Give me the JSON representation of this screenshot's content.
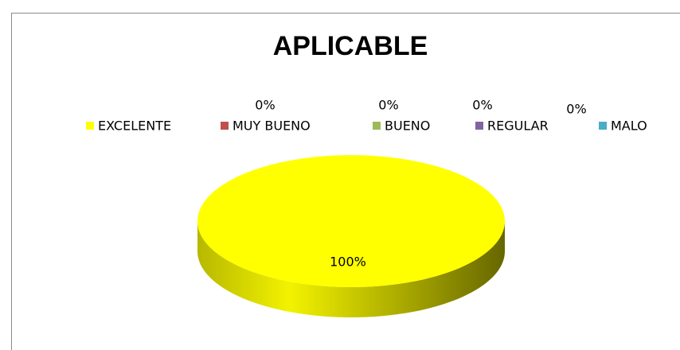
{
  "chart_data": {
    "type": "pie",
    "title": "APLICABLE",
    "categories": [
      "EXCELENTE",
      "MUY BUENO",
      "BUENO",
      "REGULAR",
      "MALO"
    ],
    "values": [
      100,
      0,
      0,
      0,
      0
    ],
    "value_labels": [
      "100%",
      "0%",
      "0%",
      "0%",
      "0%"
    ],
    "colors": [
      "#ffff00",
      "#c0504d",
      "#9bbb59",
      "#8064a2",
      "#4bacc6"
    ],
    "legend": "top"
  }
}
